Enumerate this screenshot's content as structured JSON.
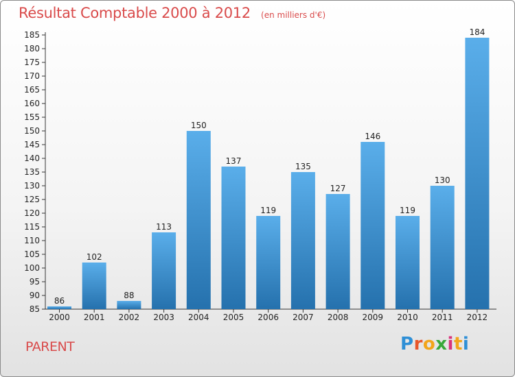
{
  "header": {
    "title": "Résultat Comptable 2000 à 2012",
    "subtitle": "(en milliers d'€)"
  },
  "commune": "PARENT",
  "logo": {
    "text": "Proxiti",
    "letter_colors": [
      "#2e8fd6",
      "#e8562a",
      "#f2a51a",
      "#38a83a",
      "#d9337a",
      "#f2a51a",
      "#2e8fd6"
    ]
  },
  "colors": {
    "title": "#d94a4a",
    "bar_top": "#5aaeea",
    "bar_bottom": "#2571ad"
  },
  "chart_data": {
    "type": "bar",
    "title": "Résultat Comptable 2000 à 2012",
    "subtitle": "(en milliers d'€)",
    "xlabel": "",
    "ylabel": "",
    "categories": [
      "2000",
      "2001",
      "2002",
      "2003",
      "2004",
      "2005",
      "2006",
      "2007",
      "2008",
      "2009",
      "2010",
      "2011",
      "2012"
    ],
    "values": [
      86,
      102,
      88,
      113,
      150,
      137,
      119,
      135,
      127,
      146,
      119,
      130,
      184
    ],
    "ylim": [
      85,
      185
    ],
    "yticks": [
      85,
      90,
      95,
      100,
      105,
      110,
      115,
      120,
      125,
      130,
      135,
      140,
      145,
      150,
      155,
      160,
      165,
      170,
      175,
      180,
      185
    ],
    "grid": false,
    "data_labels": true
  }
}
